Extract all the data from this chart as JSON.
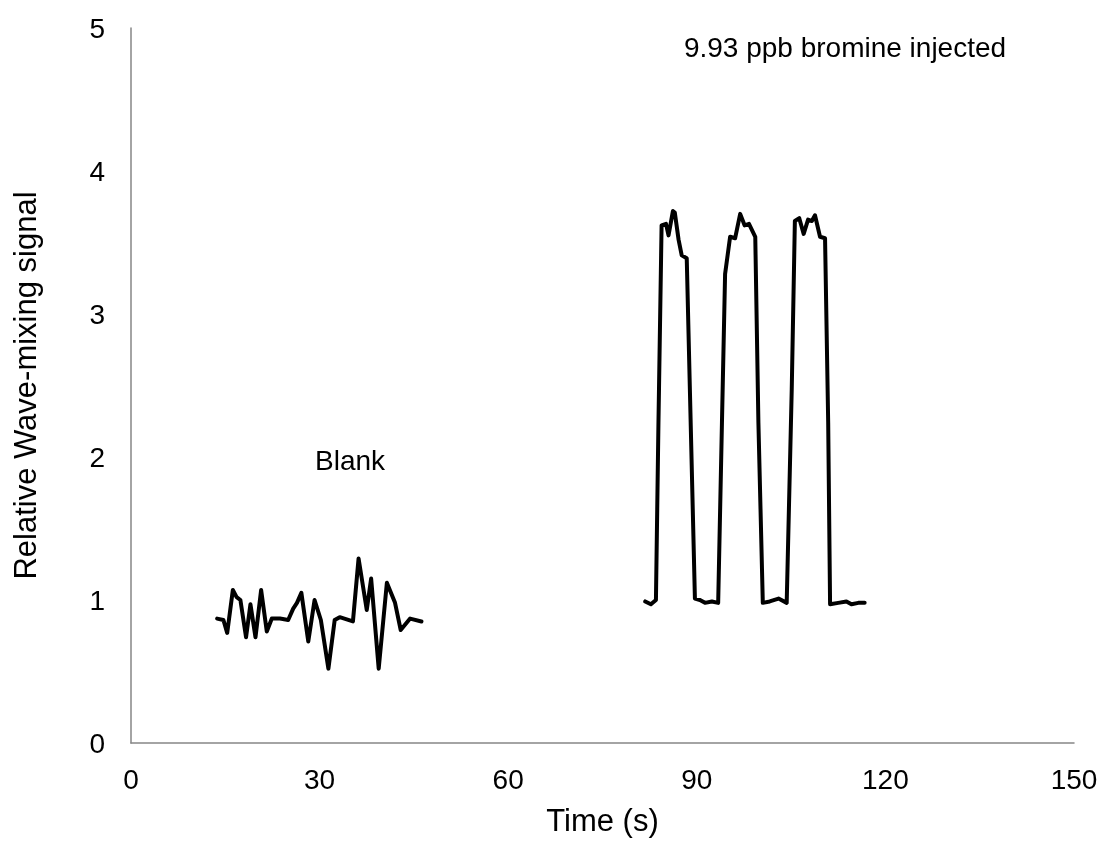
{
  "chart_data": {
    "type": "line",
    "xlabel": "Time (s)",
    "ylabel": "Relative Wave-mixing signal",
    "xlim": [
      0,
      150
    ],
    "xticks": [
      0,
      30,
      60,
      90,
      120,
      150
    ],
    "ylim": [
      0,
      5
    ],
    "yticks": [
      0,
      1,
      2,
      3,
      4,
      5
    ],
    "grid": false,
    "marker": "none",
    "line_style": "solid",
    "annotations": [
      "Blank",
      "9.93 ppb bromine injected"
    ],
    "series": [
      {
        "color": "#000000",
        "x": [
          13.7,
          14.7,
          15.3,
          16.2,
          16.8,
          17.4,
          18.3,
          19.0,
          19.8,
          20.7,
          21.6,
          22.4,
          23.7,
          25.0,
          25.8,
          26.4,
          27.1,
          28.2,
          29.2,
          30.2,
          31.4,
          32.4,
          33.2,
          35.3,
          36.2,
          37.5,
          38.2,
          39.4,
          40.7,
          42.0,
          42.9,
          44.4,
          46.2
        ],
        "values": [
          0.87,
          0.86,
          0.77,
          1.07,
          1.02,
          1.0,
          0.74,
          0.97,
          0.74,
          1.07,
          0.78,
          0.87,
          0.87,
          0.86,
          0.94,
          0.98,
          1.05,
          0.71,
          1.0,
          0.86,
          0.52,
          0.86,
          0.88,
          0.85,
          1.29,
          0.93,
          1.15,
          0.52,
          1.12,
          0.98,
          0.79,
          0.87,
          0.85
        ]
      },
      {
        "color": "#000000",
        "x": [
          81.8,
          82.7,
          83.5,
          83.9,
          84.4,
          85.1,
          85.5,
          86.2,
          86.5,
          87.1,
          87.6,
          88.4,
          88.9,
          89.7,
          90.5,
          91.3,
          92.4,
          93.4,
          94.0,
          94.5,
          95.3,
          96.1,
          96.9,
          97.6,
          98.3,
          99.3,
          99.8,
          100.5,
          101.6,
          103.0,
          104.3,
          105.1,
          105.6,
          106.3,
          107.0,
          107.7,
          108.3,
          108.8,
          109.6,
          110.4,
          110.9,
          111.2,
          112.5,
          113.8,
          114.6,
          115.7,
          116.7
        ],
        "values": [
          0.99,
          0.97,
          1.0,
          2.24,
          3.62,
          3.63,
          3.55,
          3.72,
          3.71,
          3.52,
          3.41,
          3.39,
          2.47,
          1.01,
          1.0,
          0.98,
          0.99,
          0.98,
          2.24,
          3.28,
          3.54,
          3.53,
          3.7,
          3.62,
          3.63,
          3.54,
          2.24,
          0.98,
          0.99,
          1.01,
          0.98,
          2.47,
          3.65,
          3.67,
          3.56,
          3.66,
          3.65,
          3.69,
          3.54,
          3.53,
          2.24,
          0.97,
          0.98,
          0.99,
          0.97,
          0.98,
          0.98
        ]
      }
    ]
  }
}
